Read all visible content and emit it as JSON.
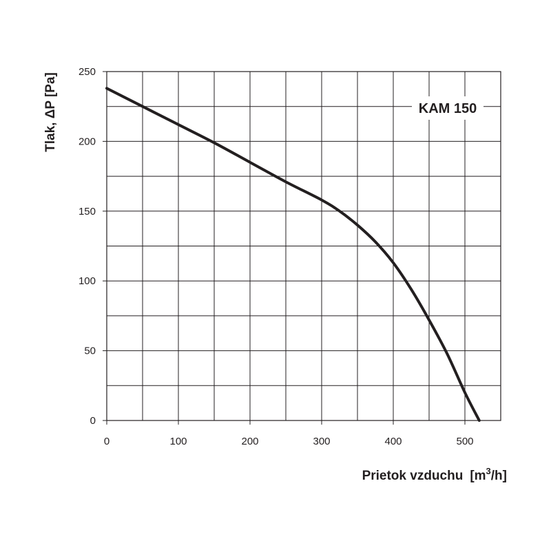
{
  "chart_data": {
    "type": "line",
    "title": "",
    "xlabel": "Prietok vzduchu",
    "xlabel_unit_open": "[m",
    "xlabel_unit_sup": "3",
    "xlabel_unit_close": "/h]",
    "ylabel": "Tlak, ΔP [Pa]",
    "xlim": [
      0,
      550
    ],
    "ylim": [
      0,
      250
    ],
    "x_ticks": [
      0,
      100,
      200,
      300,
      400,
      500
    ],
    "y_ticks": [
      0,
      50,
      100,
      150,
      200,
      250
    ],
    "x_grid_step": 50,
    "y_grid_step": 25,
    "grid": true,
    "series": [
      {
        "name": "KAM 150",
        "x": [
          0,
          50,
          100,
          150,
          200,
          250,
          300,
          325,
          350,
          375,
          400,
          425,
          450,
          475,
          500,
          520
        ],
        "y": [
          238,
          225,
          212,
          199,
          185,
          171,
          158,
          150,
          140,
          128,
          113,
          94,
          72,
          48,
          20,
          0
        ]
      }
    ]
  }
}
